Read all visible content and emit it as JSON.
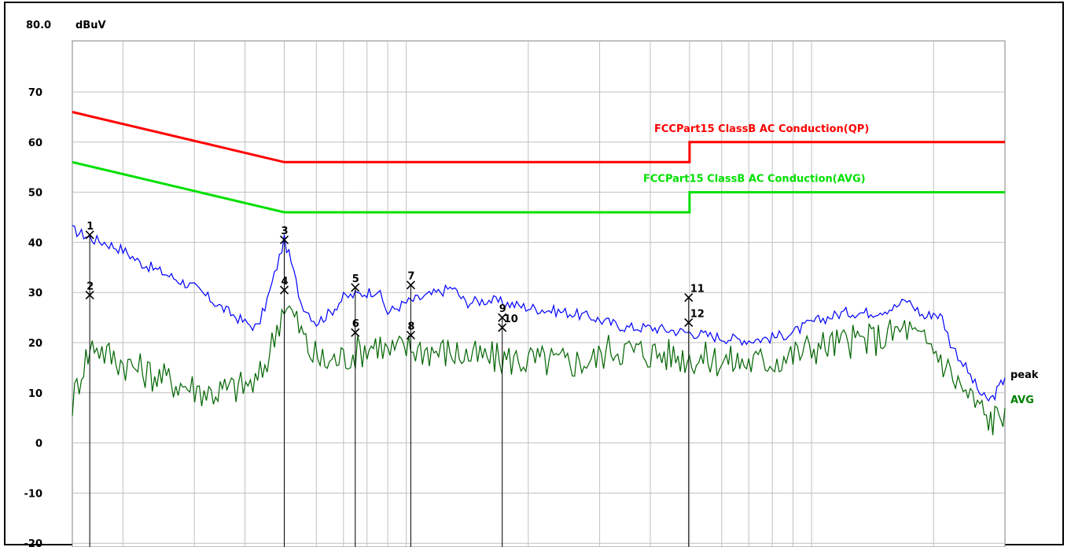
{
  "chart_data": {
    "type": "line",
    "xscale": "log",
    "xlim_mhz": [
      0.15,
      30
    ],
    "ylim": [
      -20,
      80
    ],
    "y_top_label": "80.0",
    "y_unit": "dBuV",
    "y_ticks": [
      {
        "value": 70,
        "label": "70"
      },
      {
        "value": 60,
        "label": "60"
      },
      {
        "value": 50,
        "label": "50"
      },
      {
        "value": 40,
        "label": "40"
      },
      {
        "value": 30,
        "label": "30"
      },
      {
        "value": 20,
        "label": "20"
      },
      {
        "value": 10,
        "label": "10"
      },
      {
        "value": 0,
        "label": "0"
      },
      {
        "value": -10,
        "label": "-10"
      },
      {
        "value": -20,
        "label": "-20"
      }
    ],
    "grid": true,
    "limit_lines": [
      {
        "name": "FCCPart15 ClassB AC Conduction(QP)",
        "color": "#ff0000",
        "points": [
          [
            0.15,
            66
          ],
          [
            0.5,
            56
          ],
          [
            5,
            56
          ],
          [
            5,
            60
          ],
          [
            30,
            60
          ]
        ]
      },
      {
        "name": "FCCPart15 ClassB AC Conduction(AVG)",
        "color": "#00e000",
        "points": [
          [
            0.15,
            56
          ],
          [
            0.5,
            46
          ],
          [
            5,
            46
          ],
          [
            5,
            50
          ],
          [
            30,
            50
          ]
        ]
      }
    ],
    "series": [
      {
        "name": "peak",
        "color": "#0000ff",
        "points": [
          [
            0.15,
            42.5
          ],
          [
            0.16,
            41.5
          ],
          [
            0.17,
            40.5
          ],
          [
            0.18,
            40
          ],
          [
            0.2,
            38.5
          ],
          [
            0.22,
            36
          ],
          [
            0.25,
            34
          ],
          [
            0.3,
            31
          ],
          [
            0.35,
            27
          ],
          [
            0.4,
            24
          ],
          [
            0.43,
            23
          ],
          [
            0.46,
            30
          ],
          [
            0.5,
            40.5
          ],
          [
            0.52,
            36
          ],
          [
            0.55,
            28
          ],
          [
            0.6,
            24
          ],
          [
            0.65,
            26
          ],
          [
            0.7,
            29
          ],
          [
            0.8,
            30
          ],
          [
            0.85,
            30.5
          ],
          [
            0.9,
            26
          ],
          [
            1,
            28
          ],
          [
            1.2,
            30
          ],
          [
            1.3,
            31
          ],
          [
            1.4,
            28
          ],
          [
            1.6,
            28.5
          ],
          [
            2,
            27
          ],
          [
            2.5,
            26
          ],
          [
            2.9,
            25
          ],
          [
            3,
            24.5
          ],
          [
            3.5,
            23
          ],
          [
            4,
            23
          ],
          [
            5,
            22
          ],
          [
            6,
            21
          ],
          [
            7,
            20.5
          ],
          [
            8,
            21
          ],
          [
            9,
            22
          ],
          [
            10,
            24
          ],
          [
            12,
            26
          ],
          [
            14,
            26
          ],
          [
            16,
            27
          ],
          [
            17.2,
            28.5
          ],
          [
            18,
            27
          ],
          [
            19,
            25
          ],
          [
            20,
            26
          ],
          [
            21,
            25
          ],
          [
            22,
            20
          ],
          [
            24,
            15
          ],
          [
            26,
            10
          ],
          [
            27,
            8.5
          ],
          [
            28,
            9
          ],
          [
            29,
            11
          ],
          [
            30,
            13
          ]
        ]
      },
      {
        "name": "AVG",
        "color": "#006400",
        "points": [
          [
            0.15,
            8
          ],
          [
            0.16,
            16
          ],
          [
            0.17,
            20
          ],
          [
            0.18,
            18
          ],
          [
            0.2,
            16
          ],
          [
            0.23,
            14
          ],
          [
            0.27,
            12
          ],
          [
            0.33,
            10
          ],
          [
            0.38,
            11
          ],
          [
            0.43,
            12
          ],
          [
            0.46,
            18
          ],
          [
            0.5,
            28
          ],
          [
            0.53,
            25
          ],
          [
            0.58,
            18
          ],
          [
            0.63,
            16
          ],
          [
            0.7,
            17
          ],
          [
            0.8,
            19
          ],
          [
            0.85,
            20
          ],
          [
            0.9,
            18
          ],
          [
            1,
            19
          ],
          [
            1.3,
            18
          ],
          [
            1.5,
            17
          ],
          [
            2,
            16.5
          ],
          [
            2.5,
            16
          ],
          [
            2.9,
            16.5
          ],
          [
            3.2,
            19
          ],
          [
            3.5,
            18.5
          ],
          [
            4,
            18
          ],
          [
            5,
            17
          ],
          [
            6,
            16.5
          ],
          [
            7,
            16
          ],
          [
            8,
            16.5
          ],
          [
            9,
            17.5
          ],
          [
            10,
            19
          ],
          [
            12,
            20
          ],
          [
            15,
            21
          ],
          [
            17.2,
            23
          ],
          [
            18,
            21
          ],
          [
            20,
            19
          ],
          [
            22,
            14
          ],
          [
            24,
            10
          ],
          [
            26,
            7
          ],
          [
            27,
            5
          ],
          [
            28,
            4.5
          ],
          [
            29,
            5.5
          ],
          [
            30,
            7
          ]
        ]
      }
    ],
    "series_labels": [
      {
        "text": "peak",
        "color": "#000000"
      },
      {
        "text": "AVG",
        "color": "#008000"
      }
    ],
    "markers": [
      {
        "label": "1",
        "x_mhz": 0.1656,
        "y": 41.5
      },
      {
        "label": "2",
        "x_mhz": 0.1656,
        "y": 29.5
      },
      {
        "label": "3",
        "x_mhz": 0.5,
        "y": 40.5
      },
      {
        "label": "4",
        "x_mhz": 0.5,
        "y": 30.5
      },
      {
        "label": "5",
        "x_mhz": 0.7484,
        "y": 31
      },
      {
        "label": "6",
        "x_mhz": 0.7484,
        "y": 22
      },
      {
        "label": "7",
        "x_mhz": 1.0261,
        "y": 31.5
      },
      {
        "label": "8",
        "x_mhz": 1.0261,
        "y": 21.5
      },
      {
        "label": "9",
        "x_mhz": 1.725,
        "y": 25
      },
      {
        "label": "10",
        "x_mhz": 1.725,
        "y": 23
      },
      {
        "label": "11",
        "x_mhz": 4.974,
        "y": 29
      },
      {
        "label": "12",
        "x_mhz": 4.974,
        "y": 24
      }
    ]
  }
}
